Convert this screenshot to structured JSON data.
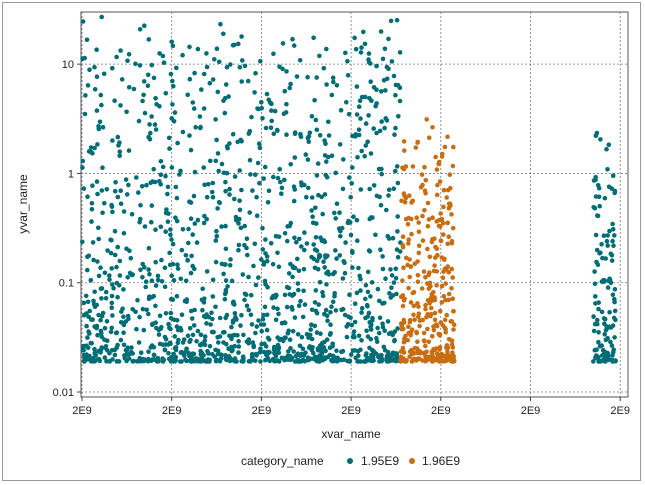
{
  "chart_data": {
    "type": "scatter",
    "xlabel": "xvar_name",
    "ylabel": "yvar_name",
    "y_scale": "log",
    "ylim": [
      0.009,
      30
    ],
    "x_tick_labels": [
      "2E9",
      "2E9",
      "2E9",
      "2E9",
      "2E9",
      "2E9",
      "2E9"
    ],
    "y_ticks": [
      0.01,
      0.1,
      1,
      10
    ],
    "y_tick_labels": [
      "0.01",
      "0.1",
      "1",
      "10"
    ],
    "grid": true,
    "legend": {
      "title": "category_name",
      "position": "bottom",
      "entries": [
        "1.95E9",
        "1.96E9"
      ]
    },
    "series": [
      {
        "name": "1.95E9",
        "color": "#006d77",
        "clusters": [
          {
            "x_range": [
              0.0,
              3.55
            ],
            "y_range": [
              0.019,
              27
            ],
            "count": 1450
          },
          {
            "x_range": [
              5.7,
              5.95
            ],
            "y_range": [
              0.019,
              3.0
            ],
            "count": 130
          }
        ],
        "notable_points": [
          [
            0.22,
            27
          ],
          [
            1.0,
            16
          ],
          [
            1.7,
            15
          ],
          [
            3.2,
            12.5
          ],
          [
            2.8,
            7.5
          ]
        ]
      },
      {
        "name": "1.96E9",
        "color": "#c86d10",
        "clusters": [
          {
            "x_range": [
              3.55,
              4.15
            ],
            "y_range": [
              0.019,
              3.2
            ],
            "count": 330
          }
        ]
      }
    ]
  }
}
